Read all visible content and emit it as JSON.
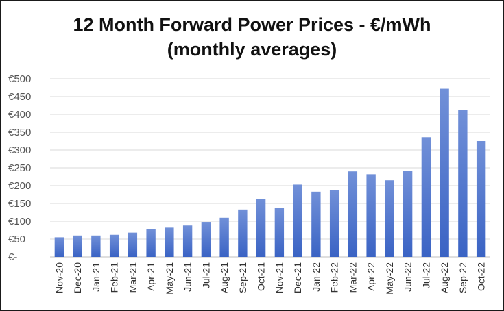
{
  "chart_data": {
    "type": "bar",
    "title": "12 Month Forward Power Prices - €/mWh",
    "subtitle": "(monthly averages)",
    "xlabel": "",
    "ylabel": "",
    "categories": [
      "Nov-20",
      "Dec-20",
      "Jan-21",
      "Feb-21",
      "Mar-21",
      "Apr-21",
      "May-21",
      "Jun-21",
      "Jul-21",
      "Aug-21",
      "Sep-21",
      "Oct-21",
      "Nov-21",
      "Dec-21",
      "Jan-22",
      "Feb-22",
      "Mar-22",
      "Apr-22",
      "May-22",
      "Jun-22",
      "Jul-22",
      "Aug-22",
      "Sep-22",
      "Oct-22"
    ],
    "values": [
      55,
      60,
      60,
      62,
      68,
      78,
      82,
      88,
      98,
      110,
      133,
      162,
      138,
      203,
      183,
      188,
      240,
      232,
      215,
      242,
      336,
      472,
      412,
      325
    ],
    "ylim": [
      0,
      500
    ],
    "yticks": [
      "€-",
      "€50",
      "€100",
      "€150",
      "€200",
      "€250",
      "€300",
      "€350",
      "€400",
      "€450",
      "€500"
    ],
    "grid": true,
    "legend": "none",
    "colors": {
      "bar_top": "#7190d8",
      "bar_bottom": "#3a63c4",
      "grid": "#d9d9d9"
    }
  }
}
